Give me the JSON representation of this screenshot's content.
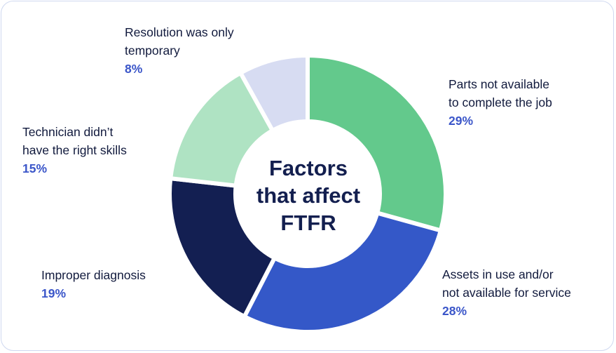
{
  "chart_data": {
    "type": "pie",
    "center_title": [
      "Factors",
      "that affect",
      "FTFR"
    ],
    "unit": "%",
    "slices": [
      {
        "label_lines": [
          "Parts not available",
          "to complete the job"
        ],
        "value": 29,
        "value_label": "29%",
        "color": "#63c98c"
      },
      {
        "label_lines": [
          "Assets in use and/or",
          "not available for service"
        ],
        "value": 28,
        "value_label": "28%",
        "color": "#3458c8"
      },
      {
        "label_lines": [
          "Improper diagnosis"
        ],
        "value": 19,
        "value_label": "19%",
        "color": "#131f52"
      },
      {
        "label_lines": [
          "Technician didn’t",
          "have the right skills"
        ],
        "value": 15,
        "value_label": "15%",
        "color": "#afe3c3"
      },
      {
        "label_lines": [
          "Resolution was only",
          "temporary"
        ],
        "value": 8,
        "value_label": "8%",
        "color": "#d7dcf2"
      }
    ]
  }
}
